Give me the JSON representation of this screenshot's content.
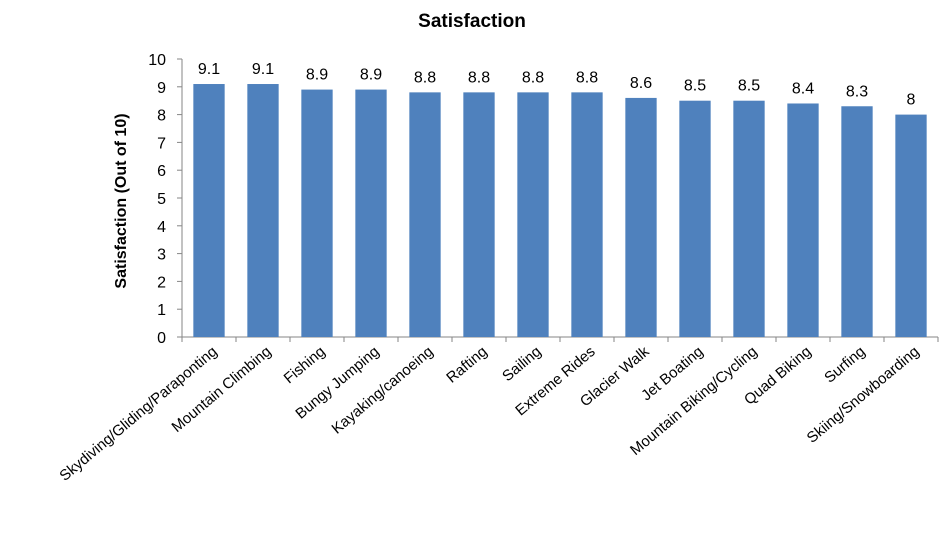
{
  "chart_data": {
    "type": "bar",
    "title": "Satisfaction",
    "xlabel": "",
    "ylabel": "Satisfaction (Out of 10)",
    "ylim": [
      0,
      10
    ],
    "yticks": [
      0,
      1,
      2,
      3,
      4,
      5,
      6,
      7,
      8,
      9,
      10
    ],
    "grid": false,
    "bar_color": "#4F81BD",
    "categories": [
      "Skydiving/Gliding/Paraponting",
      "Mountain Climbing",
      "Fishing",
      "Bungy Jumping",
      "Kayaking/canoeing",
      "Rafting",
      "Sailing",
      "Extreme Rides",
      "Glacier Walk",
      "Jet Boating",
      "Mountain Biking/Cycling",
      "Quad Biking",
      "Surfing",
      "Skiing/Snowboarding"
    ],
    "values": [
      9.1,
      9.1,
      8.9,
      8.9,
      8.8,
      8.8,
      8.8,
      8.8,
      8.6,
      8.5,
      8.5,
      8.4,
      8.3,
      8
    ],
    "data_labels": [
      "9.1",
      "9.1",
      "8.9",
      "8.9",
      "8.8",
      "8.8",
      "8.8",
      "8.8",
      "8.6",
      "8.5",
      "8.5",
      "8.4",
      "8.3",
      "8"
    ]
  }
}
